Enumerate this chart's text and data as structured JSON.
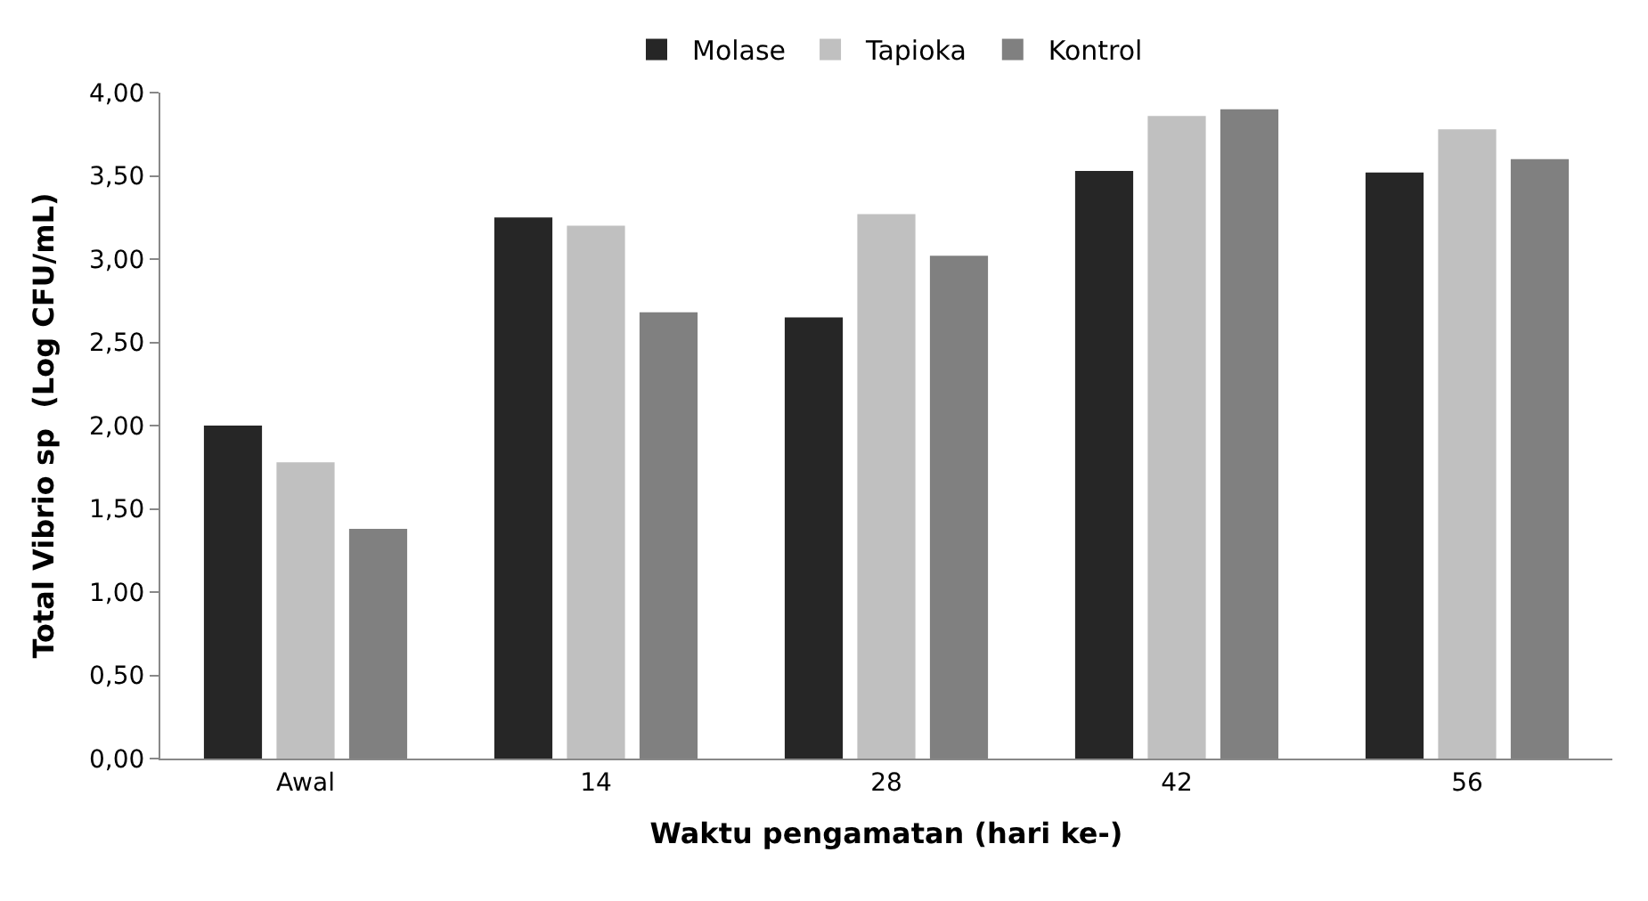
{
  "chart_data": {
    "type": "bar",
    "xlabel": "Waktu pengamatan (hari ke-)",
    "ylabel": "Total Vibrio sp  (Log CFU/mL)",
    "categories": [
      "Awal",
      "14",
      "28",
      "42",
      "56"
    ],
    "series": [
      {
        "name": "Molase",
        "color": "#262626",
        "values": [
          2.0,
          3.25,
          2.65,
          3.53,
          3.52
        ]
      },
      {
        "name": "Tapioka",
        "color": "#c0c0c0",
        "values": [
          1.78,
          3.2,
          3.27,
          3.86,
          3.78
        ]
      },
      {
        "name": "Kontrol",
        "color": "#808080",
        "values": [
          1.38,
          2.68,
          3.02,
          3.9,
          3.6
        ]
      }
    ],
    "ylim": [
      0,
      4
    ],
    "yticks": [
      {
        "value": 0,
        "label": "0,00"
      },
      {
        "value": 0.5,
        "label": "0,50"
      },
      {
        "value": 1,
        "label": "1,00"
      },
      {
        "value": 1.5,
        "label": "1,50"
      },
      {
        "value": 2,
        "label": "2,00"
      },
      {
        "value": 2.5,
        "label": "2,50"
      },
      {
        "value": 3,
        "label": "3,00"
      },
      {
        "value": 3.5,
        "label": "3,50"
      },
      {
        "value": 4,
        "label": "4,00"
      }
    ],
    "legend": "top"
  }
}
